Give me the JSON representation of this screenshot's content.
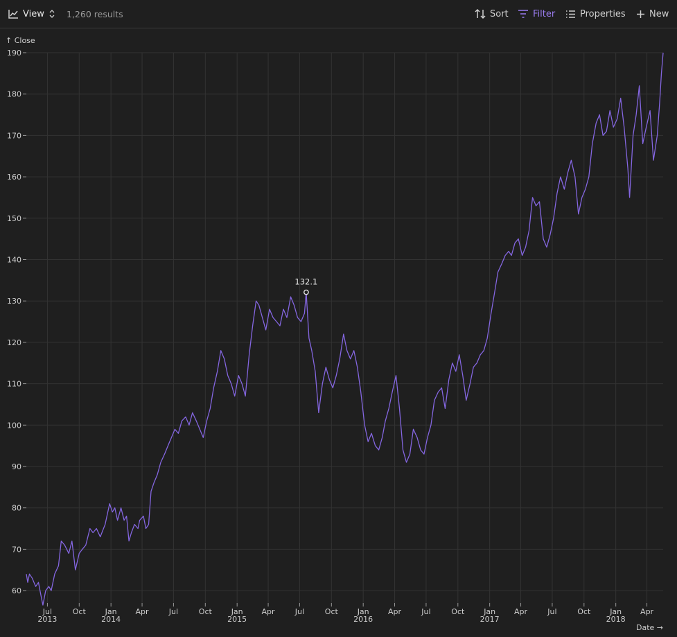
{
  "toolbar": {
    "view_label": "View",
    "results": "1,260 results",
    "sort_label": "Sort",
    "filter_label": "Filter",
    "properties_label": "Properties",
    "new_label": "New"
  },
  "close_label": "↑ Close",
  "colors": {
    "line": "#8466e0",
    "filter_accent": "#9a7cf0",
    "grid": "#333333",
    "background": "#1f1f1f"
  },
  "chart_data": {
    "type": "line",
    "xlabel": "Date →",
    "ylabel": "",
    "ylim": [
      57,
      190
    ],
    "xlim": [
      "2013-05-01",
      "2018-05-18"
    ],
    "grid": true,
    "yticks": [
      60,
      70,
      80,
      90,
      100,
      110,
      120,
      130,
      140,
      150,
      160,
      170,
      180,
      190
    ],
    "xticks": [
      {
        "date": "2013-07-01",
        "label": "Jul",
        "year": "2013"
      },
      {
        "date": "2013-10-01",
        "label": "Oct",
        "year": ""
      },
      {
        "date": "2014-01-01",
        "label": "Jan",
        "year": "2014"
      },
      {
        "date": "2014-04-01",
        "label": "Apr",
        "year": ""
      },
      {
        "date": "2014-07-01",
        "label": "Jul",
        "year": ""
      },
      {
        "date": "2014-10-01",
        "label": "Oct",
        "year": ""
      },
      {
        "date": "2015-01-01",
        "label": "Jan",
        "year": "2015"
      },
      {
        "date": "2015-04-01",
        "label": "Apr",
        "year": ""
      },
      {
        "date": "2015-07-01",
        "label": "Jul",
        "year": ""
      },
      {
        "date": "2015-10-01",
        "label": "Oct",
        "year": ""
      },
      {
        "date": "2016-01-01",
        "label": "Jan",
        "year": "2016"
      },
      {
        "date": "2016-04-01",
        "label": "Apr",
        "year": ""
      },
      {
        "date": "2016-07-01",
        "label": "Jul",
        "year": ""
      },
      {
        "date": "2016-10-01",
        "label": "Oct",
        "year": ""
      },
      {
        "date": "2017-01-01",
        "label": "Jan",
        "year": "2017"
      },
      {
        "date": "2017-04-01",
        "label": "Apr",
        "year": ""
      },
      {
        "date": "2017-07-01",
        "label": "Jul",
        "year": ""
      },
      {
        "date": "2017-10-01",
        "label": "Oct",
        "year": ""
      },
      {
        "date": "2018-01-01",
        "label": "Jan",
        "year": "2018"
      },
      {
        "date": "2018-04-01",
        "label": "Apr",
        "year": ""
      }
    ],
    "annotation": {
      "date": "2015-07-20",
      "value": 132.1,
      "label": "132.1"
    },
    "series": [
      {
        "points": [
          [
            "2013-05-01",
            64
          ],
          [
            "2013-05-05",
            62
          ],
          [
            "2013-05-10",
            64
          ],
          [
            "2013-05-18",
            63
          ],
          [
            "2013-05-28",
            61
          ],
          [
            "2013-06-05",
            62
          ],
          [
            "2013-06-12",
            59
          ],
          [
            "2013-06-18",
            56.5
          ],
          [
            "2013-06-26",
            60
          ],
          [
            "2013-07-05",
            61
          ],
          [
            "2013-07-12",
            60
          ],
          [
            "2013-07-22",
            64
          ],
          [
            "2013-08-02",
            66
          ],
          [
            "2013-08-10",
            72
          ],
          [
            "2013-08-20",
            71
          ],
          [
            "2013-09-01",
            69
          ],
          [
            "2013-09-10",
            72
          ],
          [
            "2013-09-20",
            65
          ],
          [
            "2013-10-01",
            69
          ],
          [
            "2013-10-10",
            70
          ],
          [
            "2013-10-20",
            71
          ],
          [
            "2013-11-01",
            75
          ],
          [
            "2013-11-10",
            74
          ],
          [
            "2013-11-20",
            75
          ],
          [
            "2013-12-01",
            73
          ],
          [
            "2013-12-15",
            76
          ],
          [
            "2013-12-28",
            81
          ],
          [
            "2014-01-05",
            79
          ],
          [
            "2014-01-12",
            80
          ],
          [
            "2014-01-20",
            77
          ],
          [
            "2014-01-30",
            80
          ],
          [
            "2014-02-08",
            77
          ],
          [
            "2014-02-15",
            78
          ],
          [
            "2014-02-22",
            72
          ],
          [
            "2014-03-01",
            74
          ],
          [
            "2014-03-10",
            76
          ],
          [
            "2014-03-20",
            75
          ],
          [
            "2014-03-25",
            77
          ],
          [
            "2014-04-05",
            78
          ],
          [
            "2014-04-12",
            75
          ],
          [
            "2014-04-20",
            76
          ],
          [
            "2014-04-27",
            84
          ],
          [
            "2014-05-05",
            86
          ],
          [
            "2014-05-15",
            88
          ],
          [
            "2014-05-25",
            91
          ],
          [
            "2014-06-05",
            93
          ],
          [
            "2014-06-15",
            95
          ],
          [
            "2014-06-25",
            97
          ],
          [
            "2014-07-05",
            99
          ],
          [
            "2014-07-15",
            98
          ],
          [
            "2014-07-25",
            101
          ],
          [
            "2014-08-05",
            102
          ],
          [
            "2014-08-15",
            100
          ],
          [
            "2014-08-25",
            103
          ],
          [
            "2014-09-05",
            101
          ],
          [
            "2014-09-15",
            99
          ],
          [
            "2014-09-25",
            97
          ],
          [
            "2014-10-05",
            101
          ],
          [
            "2014-10-15",
            104
          ],
          [
            "2014-10-25",
            109
          ],
          [
            "2014-11-05",
            113
          ],
          [
            "2014-11-15",
            118
          ],
          [
            "2014-11-25",
            116
          ],
          [
            "2014-12-05",
            112
          ],
          [
            "2014-12-15",
            110
          ],
          [
            "2014-12-25",
            107
          ],
          [
            "2015-01-05",
            112
          ],
          [
            "2015-01-15",
            110
          ],
          [
            "2015-01-25",
            107
          ],
          [
            "2015-02-05",
            117
          ],
          [
            "2015-02-15",
            124
          ],
          [
            "2015-02-25",
            130
          ],
          [
            "2015-03-05",
            129
          ],
          [
            "2015-03-15",
            126
          ],
          [
            "2015-03-25",
            123
          ],
          [
            "2015-04-05",
            128
          ],
          [
            "2015-04-15",
            126
          ],
          [
            "2015-04-25",
            125
          ],
          [
            "2015-05-05",
            124
          ],
          [
            "2015-05-15",
            128
          ],
          [
            "2015-05-25",
            126
          ],
          [
            "2015-06-05",
            131
          ],
          [
            "2015-06-15",
            129
          ],
          [
            "2015-06-25",
            126
          ],
          [
            "2015-07-05",
            125
          ],
          [
            "2015-07-15",
            127
          ],
          [
            "2015-07-20",
            132.1
          ],
          [
            "2015-07-28",
            121
          ],
          [
            "2015-08-05",
            118
          ],
          [
            "2015-08-15",
            113
          ],
          [
            "2015-08-25",
            103
          ],
          [
            "2015-09-05",
            110
          ],
          [
            "2015-09-15",
            114
          ],
          [
            "2015-09-25",
            111
          ],
          [
            "2015-10-05",
            109
          ],
          [
            "2015-10-15",
            112
          ],
          [
            "2015-10-25",
            116
          ],
          [
            "2015-11-05",
            122
          ],
          [
            "2015-11-15",
            118
          ],
          [
            "2015-11-25",
            116
          ],
          [
            "2015-12-05",
            118
          ],
          [
            "2015-12-15",
            114
          ],
          [
            "2015-12-25",
            108
          ],
          [
            "2016-01-05",
            100
          ],
          [
            "2016-01-15",
            96
          ],
          [
            "2016-01-25",
            98
          ],
          [
            "2016-02-05",
            95
          ],
          [
            "2016-02-15",
            94
          ],
          [
            "2016-02-25",
            97
          ],
          [
            "2016-03-05",
            101
          ],
          [
            "2016-03-15",
            104
          ],
          [
            "2016-03-25",
            108
          ],
          [
            "2016-04-05",
            112
          ],
          [
            "2016-04-15",
            104
          ],
          [
            "2016-04-25",
            94
          ],
          [
            "2016-05-05",
            91
          ],
          [
            "2016-05-15",
            93
          ],
          [
            "2016-05-25",
            99
          ],
          [
            "2016-06-05",
            97
          ],
          [
            "2016-06-15",
            94
          ],
          [
            "2016-06-25",
            93
          ],
          [
            "2016-07-05",
            97
          ],
          [
            "2016-07-15",
            100
          ],
          [
            "2016-07-25",
            106
          ],
          [
            "2016-08-05",
            108
          ],
          [
            "2016-08-15",
            109
          ],
          [
            "2016-08-25",
            104
          ],
          [
            "2016-09-05",
            111
          ],
          [
            "2016-09-15",
            115
          ],
          [
            "2016-09-25",
            113
          ],
          [
            "2016-10-05",
            117
          ],
          [
            "2016-10-15",
            112
          ],
          [
            "2016-10-25",
            106
          ],
          [
            "2016-11-05",
            110
          ],
          [
            "2016-11-15",
            114
          ],
          [
            "2016-11-25",
            115
          ],
          [
            "2016-12-05",
            117
          ],
          [
            "2016-12-15",
            118
          ],
          [
            "2016-12-25",
            121
          ],
          [
            "2017-01-05",
            127
          ],
          [
            "2017-01-15",
            132
          ],
          [
            "2017-01-25",
            137
          ],
          [
            "2017-02-05",
            139
          ],
          [
            "2017-02-15",
            141
          ],
          [
            "2017-02-25",
            142
          ],
          [
            "2017-03-05",
            141
          ],
          [
            "2017-03-15",
            144
          ],
          [
            "2017-03-25",
            145
          ],
          [
            "2017-04-05",
            141
          ],
          [
            "2017-04-15",
            143
          ],
          [
            "2017-04-25",
            147
          ],
          [
            "2017-05-05",
            155
          ],
          [
            "2017-05-15",
            153
          ],
          [
            "2017-05-25",
            154
          ],
          [
            "2017-06-05",
            145
          ],
          [
            "2017-06-15",
            143
          ],
          [
            "2017-06-25",
            146
          ],
          [
            "2017-07-05",
            150
          ],
          [
            "2017-07-15",
            156
          ],
          [
            "2017-07-25",
            160
          ],
          [
            "2017-08-05",
            157
          ],
          [
            "2017-08-15",
            161
          ],
          [
            "2017-08-25",
            164
          ],
          [
            "2017-09-05",
            160
          ],
          [
            "2017-09-15",
            151
          ],
          [
            "2017-09-25",
            155
          ],
          [
            "2017-10-05",
            157
          ],
          [
            "2017-10-15",
            160
          ],
          [
            "2017-10-25",
            168
          ],
          [
            "2017-11-05",
            173
          ],
          [
            "2017-11-15",
            175
          ],
          [
            "2017-11-25",
            170
          ],
          [
            "2017-12-05",
            171
          ],
          [
            "2017-12-15",
            176
          ],
          [
            "2017-12-25",
            172
          ],
          [
            "2018-01-05",
            174
          ],
          [
            "2018-01-15",
            179
          ],
          [
            "2018-01-25",
            172
          ],
          [
            "2018-02-05",
            162
          ],
          [
            "2018-02-10",
            155
          ],
          [
            "2018-02-20",
            170
          ],
          [
            "2018-03-01",
            175
          ],
          [
            "2018-03-10",
            182
          ],
          [
            "2018-03-20",
            168
          ],
          [
            "2018-03-30",
            172
          ],
          [
            "2018-04-10",
            176
          ],
          [
            "2018-04-20",
            164
          ],
          [
            "2018-05-01",
            170
          ],
          [
            "2018-05-08",
            178
          ],
          [
            "2018-05-13",
            185
          ],
          [
            "2018-05-18",
            190
          ]
        ]
      }
    ]
  }
}
